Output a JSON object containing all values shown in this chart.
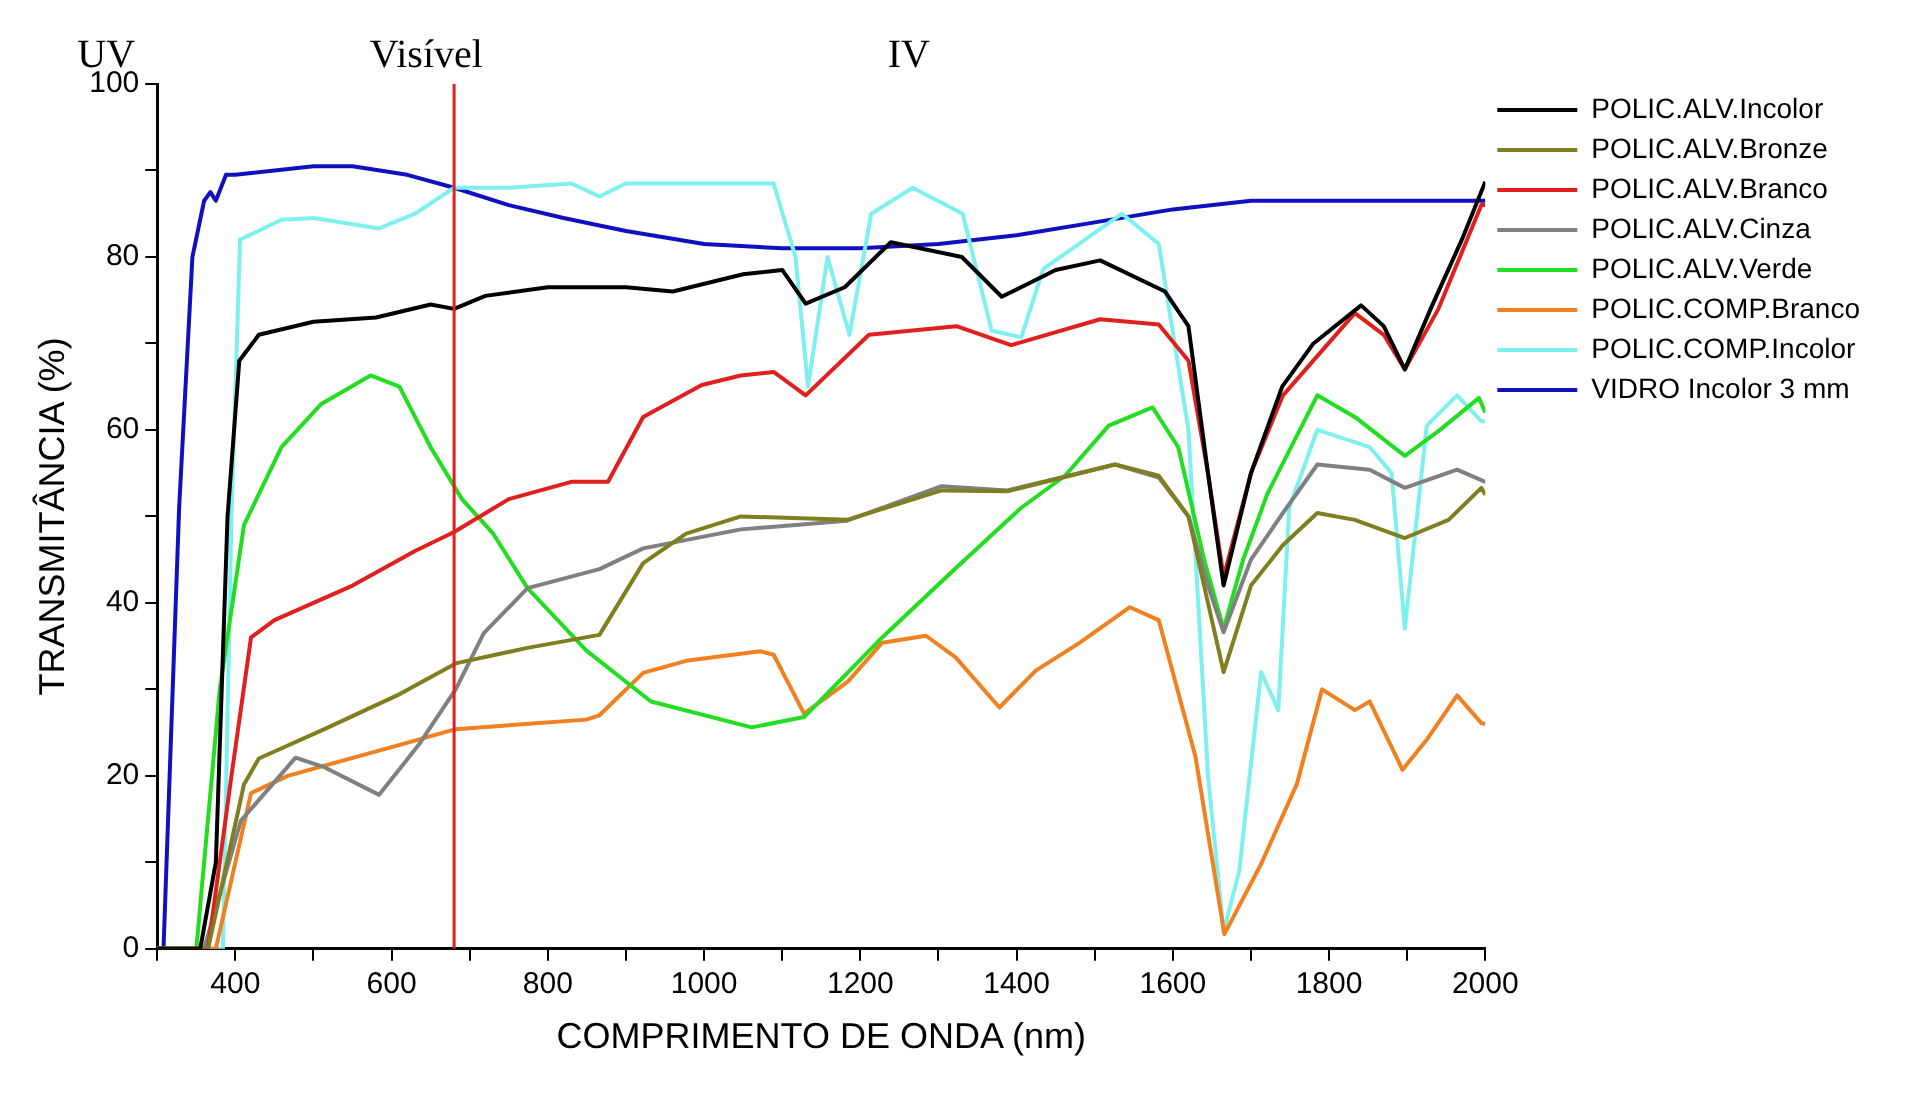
{
  "chart_data": {
    "type": "line",
    "xlabel": "COMPRIMENTO DE ONDA (nm)",
    "ylabel": "TRANSMITÂNCIA (%)",
    "xlim": [
      300,
      2000
    ],
    "xticks": [
      {
        "value": 300,
        "label": null
      },
      400,
      {
        "value": 500,
        "label": null
      },
      600,
      {
        "value": 700,
        "label": null
      },
      800,
      {
        "value": 900,
        "label": null
      },
      1000,
      {
        "value": 1100,
        "label": null
      },
      1200,
      {
        "value": 1300,
        "label": null
      },
      1400,
      {
        "value": 1500,
        "label": null
      },
      1600,
      {
        "value": 1700,
        "label": null
      },
      1800,
      {
        "value": 1900,
        "label": null
      },
      2000
    ],
    "ylim": [
      0,
      100
    ],
    "yticks": [
      0,
      {
        "value": 10,
        "label": null
      },
      20,
      {
        "value": 30,
        "label": null
      },
      40,
      {
        "value": 50,
        "label": null
      },
      60,
      {
        "value": 70,
        "label": null
      },
      80,
      {
        "value": 90,
        "label": null
      },
      100
    ],
    "grid": false,
    "legend": "right",
    "marker": "none",
    "line_style": "solid",
    "ref_lines": [
      {
        "axis": "x",
        "value": 680,
        "color": "#e02020"
      }
    ],
    "annotations": [
      "UV",
      "Visível",
      "IV"
    ],
    "series": [
      {
        "name": "POLIC.ALV.Incolor",
        "color": "#000000",
        "x": [
          300,
          355,
          375,
          390,
          405,
          430,
          500,
          580,
          650,
          680,
          720,
          800,
          900,
          960,
          1050,
          1100,
          1130,
          1180,
          1239,
          1330,
          1381,
          1450,
          1507,
          1590,
          1620,
          1645,
          1665,
          1700,
          1740,
          1780,
          1841,
          1870,
          1897,
          1930,
          1970,
          2000
        ],
        "values": [
          0,
          0,
          10,
          50,
          68,
          71,
          72.5,
          73,
          74.5,
          74,
          75.5,
          76.5,
          76.5,
          76,
          78,
          78.5,
          74.6,
          76.5,
          81.7,
          80,
          75.4,
          78.5,
          79.6,
          76,
          72,
          55,
          42,
          55,
          65,
          70,
          74.4,
          72,
          67,
          74,
          82,
          88.7
        ]
      },
      {
        "name": "POLIC.ALV.Bronze",
        "color": "#7f7f1f",
        "x": [
          300,
          365,
          411,
          430,
          514,
          607,
          682,
          774,
          866,
          922,
          977,
          1047,
          1183,
          1304,
          1388,
          1526,
          1582,
          1620,
          1645,
          1665,
          1700,
          1741,
          1785,
          1833,
          1897,
          1953,
          1995,
          2000
        ],
        "values": [
          0,
          0,
          19,
          22,
          25.4,
          29.3,
          33,
          34.8,
          36.3,
          44.6,
          48,
          50,
          49.6,
          53,
          52.9,
          56,
          54.7,
          50,
          40,
          32,
          42,
          46.7,
          50.4,
          49.6,
          47.5,
          49.6,
          53.3,
          52.5
        ]
      },
      {
        "name": "POLIC.ALV.Branco",
        "color": "#e01f1f",
        "x": [
          300,
          365,
          395,
          420,
          450,
          550,
          630,
          680,
          750,
          830,
          877,
          922,
          997,
          1047,
          1089,
          1130,
          1211,
          1323,
          1393,
          1507,
          1582,
          1620,
          1645,
          1665,
          1700,
          1741,
          1833,
          1870,
          1897,
          1940,
          1995,
          2000
        ],
        "values": [
          0,
          0,
          20,
          36,
          38,
          42,
          46,
          48.2,
          52,
          54,
          54,
          61.5,
          65.2,
          66.3,
          66.7,
          64,
          71,
          72,
          69.8,
          72.8,
          72.2,
          68,
          55,
          43,
          55,
          64,
          73.5,
          71,
          67,
          74,
          86,
          86
        ]
      },
      {
        "name": "POLIC.ALV.Cinza",
        "color": "#808080",
        "x": [
          300,
          360,
          407,
          477,
          514,
          584,
          634,
          682,
          718,
          774,
          866,
          922,
          1047,
          1183,
          1304,
          1388,
          1526,
          1582,
          1620,
          1645,
          1665,
          1700,
          1741,
          1785,
          1852,
          1897,
          1964,
          2000
        ],
        "values": [
          0,
          0,
          14.8,
          22.1,
          21,
          17.8,
          23.5,
          30,
          36.5,
          41.7,
          43.9,
          46.3,
          48.5,
          49.5,
          53.5,
          53,
          56,
          54.5,
          50,
          42,
          36.6,
          45,
          50.4,
          56,
          55.4,
          53.3,
          55.4,
          54
        ]
      },
      {
        "name": "POLIC.ALV.Verde",
        "color": "#22dd22",
        "x": [
          300,
          350,
          380,
          411,
          459,
          510,
          573,
          610,
          650,
          690,
          730,
          774,
          849,
          932,
          1061,
          1128,
          1228,
          1322,
          1406,
          1462,
          1518,
          1574,
          1607,
          1640,
          1665,
          1690,
          1721,
          1785,
          1833,
          1897,
          1942,
          1992,
          2000
        ],
        "values": [
          0,
          0,
          30,
          49,
          58,
          63,
          66.3,
          65,
          58,
          52,
          48,
          41.7,
          34.5,
          28.6,
          25.6,
          26.8,
          36,
          44,
          51,
          54.7,
          60.5,
          62.6,
          58,
          45,
          37,
          45,
          52.6,
          64,
          61.5,
          57,
          60,
          63.7,
          62
        ]
      },
      {
        "name": "POLIC.COMP.Branco",
        "color": "#f08020",
        "x": [
          300,
          375,
          420,
          467,
          607,
          682,
          849,
          866,
          922,
          977,
          1072,
          1089,
          1128,
          1184,
          1228,
          1284,
          1322,
          1378,
          1425,
          1481,
          1545,
          1582,
          1629,
          1666,
          1713,
          1759,
          1791,
          1833,
          1852,
          1894,
          1926,
          1964,
          1995,
          2000
        ],
        "values": [
          0,
          0,
          18,
          20,
          23.5,
          25.4,
          26.5,
          27,
          31.9,
          33.3,
          34.4,
          34,
          27.2,
          30.9,
          35.4,
          36.2,
          33.7,
          27.9,
          32.2,
          35.4,
          39.5,
          38,
          22.2,
          1.7,
          9.8,
          19.1,
          30,
          27.6,
          28.6,
          20.7,
          24.3,
          29.3,
          26.1,
          26
        ]
      },
      {
        "name": "POLIC.COMP.Incolor",
        "color": "#7ff0f0",
        "x": [
          300,
          384,
          395,
          406,
          459,
          500,
          584,
          630,
          680,
          750,
          830,
          866,
          900,
          1000,
          1089,
          1117,
          1133,
          1158,
          1186,
          1214,
          1267,
          1331,
          1368,
          1406,
          1434,
          1535,
          1582,
          1620,
          1645,
          1665,
          1685,
          1713,
          1735,
          1749,
          1785,
          1852,
          1880,
          1897,
          1925,
          1964,
          1995,
          2000
        ],
        "values": [
          0,
          0,
          50,
          82,
          84.3,
          84.5,
          83.3,
          85,
          88,
          88,
          88.5,
          87,
          88.5,
          88.5,
          88.5,
          80,
          65,
          80,
          71,
          85,
          88,
          85,
          71.5,
          70.7,
          78.6,
          85,
          81.5,
          60,
          20,
          2,
          9,
          32,
          27.6,
          51,
          60,
          58,
          55,
          37,
          60.5,
          64,
          61,
          61
        ]
      },
      {
        "name": "VIDRO Incolor 3 mm",
        "color": "#1010c0",
        "x": [
          300,
          308,
          328,
          345,
          360,
          368,
          375,
          388,
          400,
          500,
          550,
          620,
          680,
          750,
          820,
          900,
          1000,
          1100,
          1200,
          1300,
          1400,
          1500,
          1600,
          1700,
          1800,
          1900,
          2000
        ],
        "values": [
          0,
          0,
          51,
          80,
          86.5,
          87.5,
          86.5,
          89.5,
          89.5,
          90.5,
          90.5,
          89.5,
          88,
          86,
          84.5,
          83,
          81.5,
          81,
          81,
          81.5,
          82.5,
          84,
          85.5,
          86.5,
          86.5,
          86.5,
          86.5
        ]
      }
    ]
  }
}
